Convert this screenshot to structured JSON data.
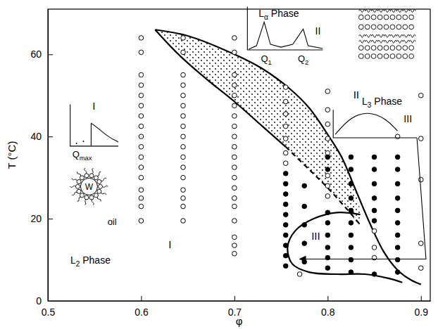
{
  "chart_data": {
    "type": "scatter",
    "x_label": "φ",
    "y_label": "T (°C)",
    "xlim": [
      0.5,
      0.91
    ],
    "ylim": [
      0,
      71
    ],
    "xticks": [
      0.5,
      0.6,
      0.7,
      0.8,
      0.9
    ],
    "yticks": [
      0,
      20,
      40,
      60
    ],
    "grid": false,
    "series": [
      {
        "marker": "open-circle",
        "color": "#000000",
        "x": [
          0.6,
          0.6,
          0.6,
          0.6,
          0.6,
          0.6,
          0.6,
          0.6,
          0.6,
          0.6,
          0.6,
          0.6,
          0.6,
          0.6,
          0.6,
          0.6,
          0.6,
          0.645,
          0.645,
          0.645,
          0.645,
          0.645,
          0.645,
          0.645,
          0.645,
          0.645,
          0.645,
          0.645,
          0.645,
          0.645,
          0.645,
          0.645,
          0.645,
          0.645,
          0.7,
          0.7,
          0.7,
          0.7,
          0.7,
          0.7,
          0.7,
          0.7,
          0.7,
          0.7,
          0.7,
          0.7,
          0.7,
          0.7,
          0.7,
          0.7,
          0.7,
          0.7,
          0.7,
          0.7,
          0.755,
          0.755,
          0.755,
          0.755,
          0.755,
          0.755,
          0.755,
          0.77,
          0.8,
          0.8,
          0.8,
          0.8,
          0.8,
          0.8,
          0.8,
          0.8,
          0.85,
          0.85,
          0.85,
          0.875,
          0.9,
          0.9,
          0.9,
          0.9,
          0.9
        ],
        "values": [
          64,
          60.5,
          55,
          52.5,
          50,
          47.5,
          45,
          42.5,
          40,
          37.5,
          35,
          32.5,
          30,
          27,
          25,
          23,
          19.5,
          64,
          60.5,
          55,
          52.5,
          50,
          47.5,
          45,
          42.5,
          40,
          37.5,
          35,
          32.5,
          30,
          27,
          25,
          23,
          19.5,
          64,
          60.5,
          55,
          52.5,
          50,
          47.5,
          45,
          42.5,
          40,
          37.5,
          35,
          32.5,
          30,
          27.5,
          25,
          23,
          19.5,
          15.5,
          13.5,
          11.5,
          52,
          48.5,
          45.5,
          42.5,
          39.5,
          36,
          33.5,
          6.5,
          51,
          46.5,
          43,
          39.5,
          36,
          30.5,
          28,
          25.5,
          17,
          13,
          10.5,
          40,
          50,
          39.5,
          29.5,
          14,
          8
        ]
      },
      {
        "marker": "filled-circle",
        "color": "#000000",
        "x": [
          0.755,
          0.755,
          0.755,
          0.755,
          0.755,
          0.755,
          0.755,
          0.755,
          0.755,
          0.755,
          0.775,
          0.775,
          0.775,
          0.775,
          0.775,
          0.8,
          0.8,
          0.8,
          0.8,
          0.8,
          0.8,
          0.8,
          0.8,
          0.825,
          0.825,
          0.825,
          0.825,
          0.825,
          0.825,
          0.825,
          0.825,
          0.825,
          0.825,
          0.85,
          0.85,
          0.85,
          0.85,
          0.85,
          0.85,
          0.85,
          0.875,
          0.875,
          0.875,
          0.875,
          0.875,
          0.875,
          0.875,
          0.875,
          0.875,
          0.875
        ],
        "values": [
          31,
          28.5,
          26,
          23.5,
          21,
          18.5,
          16,
          13.5,
          11,
          8.5,
          28,
          23,
          18.5,
          14,
          9.5,
          35,
          32,
          21.5,
          19,
          16,
          13,
          10.5,
          8,
          35,
          32,
          28.5,
          25,
          22,
          19,
          16,
          13,
          10,
          7,
          35,
          32,
          28.5,
          25,
          22,
          19.5,
          6.5,
          35,
          32,
          28.5,
          25,
          22,
          19,
          16,
          13,
          10,
          7
        ]
      }
    ],
    "boundaries": [
      {
        "line_style": "solid",
        "x": [
          0.615,
          0.65,
          0.7,
          0.73,
          0.76,
          0.78,
          0.8,
          0.815,
          0.83,
          0.845,
          0.86,
          0.875,
          0.89,
          0.9
        ],
        "values": [
          66,
          64.5,
          60,
          56.5,
          51.5,
          47,
          40.5,
          35,
          27,
          19,
          12,
          7.5,
          5,
          4
        ]
      },
      {
        "line_style": "solid",
        "x": [
          0.615,
          0.64,
          0.67,
          0.7,
          0.73,
          0.755
        ],
        "values": [
          66,
          60,
          54,
          48.5,
          42.5,
          37.5
        ]
      },
      {
        "line_style": "dashed",
        "x": [
          0.755,
          0.78,
          0.8,
          0.82,
          0.835
        ],
        "values": [
          37.5,
          32,
          27.5,
          22.5,
          18.5
        ]
      },
      {
        "line_style": "solid",
        "x": [
          0.835,
          0.81,
          0.785,
          0.765,
          0.757,
          0.762,
          0.78,
          0.81,
          0.84,
          0.865,
          0.88
        ],
        "values": [
          21,
          21.5,
          20,
          17,
          13,
          9,
          7,
          6.5,
          6.5,
          5.5,
          4.5
        ]
      }
    ],
    "annotations": [
      {
        "text": [
          "I"
        ]
      },
      {
        "text": [
          "Q",
          "max"
        ]
      },
      {
        "text": [
          "W"
        ]
      },
      {
        "text": [
          "oil"
        ]
      },
      {
        "text": [
          "L",
          "2",
          " Phase"
        ]
      },
      {
        "text": [
          "I"
        ]
      },
      {
        "text": [
          "L",
          "α",
          " Phase"
        ]
      },
      {
        "text": [
          "II"
        ]
      },
      {
        "text": [
          "Q",
          "1"
        ]
      },
      {
        "text": [
          "Q",
          "2"
        ]
      },
      {
        "text": [
          "II"
        ]
      },
      {
        "text": [
          "L",
          "3",
          " Phase"
        ]
      },
      {
        "text": [
          "III"
        ]
      },
      {
        "text": [
          "III"
        ]
      }
    ]
  }
}
